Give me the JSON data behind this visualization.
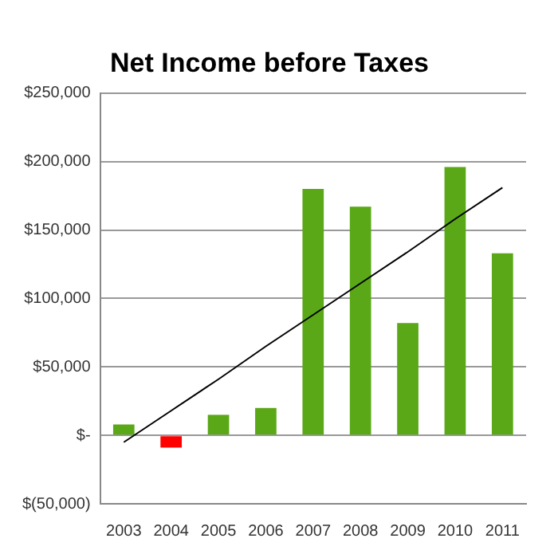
{
  "chart_data": {
    "type": "bar",
    "title": "Net Income before Taxes",
    "categories": [
      "2003",
      "2004",
      "2005",
      "2006",
      "2007",
      "2008",
      "2009",
      "2010",
      "2011"
    ],
    "series": [
      {
        "colors": [
          "#5aa817",
          "#ff0000",
          "#5aa817",
          "#5aa817",
          "#5aa817",
          "#5aa817",
          "#5aa817",
          "#5aa817",
          "#5aa817"
        ],
        "values": [
          8000,
          -9000,
          15000,
          20000,
          180000,
          167000,
          82000,
          196000,
          133000
        ]
      },
      {
        "type": "line",
        "color": "#000000",
        "values": [
          -5000,
          18000,
          41000,
          65000,
          88000,
          111000,
          134000,
          158000,
          181000
        ],
        "marker": "none"
      }
    ],
    "ylim": [
      -50000,
      250000
    ],
    "yticks": [
      {
        "value": -50000,
        "label": "$(50,000)"
      },
      {
        "value": 0,
        "label": "$-"
      },
      {
        "value": 50000,
        "label": "$50,000"
      },
      {
        "value": 100000,
        "label": "$100,000"
      },
      {
        "value": 150000,
        "label": "$150,000"
      },
      {
        "value": 200000,
        "label": "$200,000"
      },
      {
        "value": 250000,
        "label": "$250,000"
      }
    ],
    "grid": "y",
    "legend": false
  }
}
